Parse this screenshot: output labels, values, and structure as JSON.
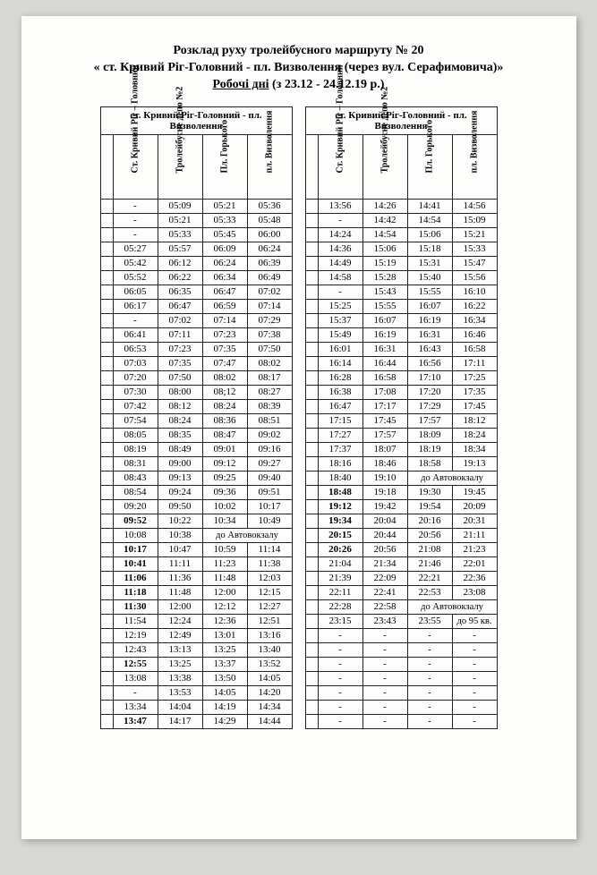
{
  "title_line1": "Розклад руху тролейбусного маршруту № 20",
  "title_line2": "« ст. Кривий Ріг-Головний - пл. Визволення (через вул. Серафимовича)»",
  "title_line3_a": "Робочі дні",
  "title_line3_b": "  (з 23.12 - 24.12.19 р.)",
  "route_header": "ст. Кривий Ріг-Головний - пл. Визволення",
  "col1": "Ст. Кривий Ріг – Головний",
  "col2": "Тролейбусне депо №2",
  "col3": "Пл. Горького",
  "col4": "пл. Визволення",
  "avtovokzal": "до Автовокзалу",
  "kv95": "до 95 кв.",
  "left_rows": [
    {
      "c": [
        "-",
        "05:09",
        "05:21",
        "05:36"
      ]
    },
    {
      "c": [
        "-",
        "05:21",
        "05:33",
        "05:48"
      ]
    },
    {
      "c": [
        "-",
        "05:33",
        "05:45",
        "06:00"
      ]
    },
    {
      "c": [
        "05:27",
        "05:57",
        "06:09",
        "06:24"
      ]
    },
    {
      "c": [
        "05:42",
        "06:12",
        "06:24",
        "06:39"
      ]
    },
    {
      "c": [
        "05:52",
        "06:22",
        "06:34",
        "06:49"
      ]
    },
    {
      "c": [
        "06:05",
        "06:35",
        "06:47",
        "07:02"
      ]
    },
    {
      "c": [
        "06:17",
        "06:47",
        "06:59",
        "07:14"
      ]
    },
    {
      "c": [
        "-",
        "07:02",
        "07:14",
        "07:29"
      ]
    },
    {
      "c": [
        "06:41",
        "07:11",
        "07:23",
        "07:38"
      ]
    },
    {
      "c": [
        "06:53",
        "07:23",
        "07:35",
        "07:50"
      ]
    },
    {
      "c": [
        "07:03",
        "07:35",
        "07:47",
        "08:02"
      ]
    },
    {
      "c": [
        "07:20",
        "07:50",
        "08:02",
        "08:17"
      ]
    },
    {
      "c": [
        "07:30",
        "08:00",
        "08;12",
        "08:27"
      ]
    },
    {
      "c": [
        "07:42",
        "08:12",
        "08:24",
        "08:39"
      ]
    },
    {
      "c": [
        "07:54",
        "08:24",
        "08:36",
        "08:51"
      ]
    },
    {
      "c": [
        "08:05",
        "08:35",
        "08:47",
        "09:02"
      ]
    },
    {
      "c": [
        "08:19",
        "08:49",
        "09:01",
        "09:16"
      ]
    },
    {
      "c": [
        "08:31",
        "09:00",
        "09:12",
        "09:27"
      ]
    },
    {
      "c": [
        "08:43",
        "09:13",
        "09:25",
        "09:40"
      ]
    },
    {
      "c": [
        "08:54",
        "09:24",
        "09:36",
        "09:51"
      ]
    },
    {
      "c": [
        "09:20",
        "09:50",
        "10:02",
        "10:17"
      ]
    },
    {
      "c": [
        "09:52",
        "10:22",
        "10:34",
        "10:49"
      ],
      "b": [
        0
      ]
    },
    {
      "c": [
        "10:08",
        "10:38"
      ],
      "span": "до Автовокзалу"
    },
    {
      "c": [
        "10:17",
        "10:47",
        "10:59",
        "11:14"
      ],
      "b": [
        0
      ]
    },
    {
      "c": [
        "10:41",
        "11:11",
        "11:23",
        "11:38"
      ],
      "b": [
        0
      ]
    },
    {
      "c": [
        "11:06",
        "11:36",
        "11:48",
        "12:03"
      ],
      "b": [
        0
      ]
    },
    {
      "c": [
        "11:18",
        "11:48",
        "12:00",
        "12:15"
      ],
      "b": [
        0
      ]
    },
    {
      "c": [
        "11:30",
        "12:00",
        "12:12",
        "12:27"
      ],
      "b": [
        0
      ]
    },
    {
      "c": [
        "11:54",
        "12:24",
        "12:36",
        "12:51"
      ]
    },
    {
      "c": [
        "12:19",
        "12:49",
        "13:01",
        "13:16"
      ]
    },
    {
      "c": [
        "12:43",
        "13:13",
        "13:25",
        "13:40"
      ]
    },
    {
      "c": [
        "12:55",
        "13:25",
        "13:37",
        "13:52"
      ],
      "b": [
        0
      ]
    },
    {
      "c": [
        "13:08",
        "13:38",
        "13:50",
        "14:05"
      ]
    },
    {
      "c": [
        "-",
        "13:53",
        "14:05",
        "14:20"
      ]
    },
    {
      "c": [
        "13:34",
        "14:04",
        "14:19",
        "14:34"
      ]
    },
    {
      "c": [
        "13:47",
        "14:17",
        "14:29",
        "14:44"
      ],
      "b": [
        0
      ]
    }
  ],
  "right_rows": [
    {
      "c": [
        "13:56",
        "14:26",
        "14:41",
        "14:56"
      ]
    },
    {
      "c": [
        "-",
        "14:42",
        "14:54",
        "15:09"
      ]
    },
    {
      "c": [
        "14:24",
        "14:54",
        "15:06",
        "15:21"
      ]
    },
    {
      "c": [
        "14:36",
        "15:06",
        "15:18",
        "15:33"
      ]
    },
    {
      "c": [
        "14:49",
        "15:19",
        "15:31",
        "15:47"
      ]
    },
    {
      "c": [
        "14:58",
        "15:28",
        "15:40",
        "15:56"
      ]
    },
    {
      "c": [
        "-",
        "15:43",
        "15:55",
        "16:10"
      ]
    },
    {
      "c": [
        "15:25",
        "15:55",
        "16:07",
        "16:22"
      ]
    },
    {
      "c": [
        "15:37",
        "16:07",
        "16:19",
        "16:34"
      ]
    },
    {
      "c": [
        "15:49",
        "16:19",
        "16:31",
        "16:46"
      ]
    },
    {
      "c": [
        "16:01",
        "16:31",
        "16:43",
        "16:58"
      ]
    },
    {
      "c": [
        "16:14",
        "16:44",
        "16:56",
        "17:11"
      ]
    },
    {
      "c": [
        "16:28",
        "16:58",
        "17:10",
        "17:25"
      ]
    },
    {
      "c": [
        "16:38",
        "17:08",
        "17:20",
        "17:35"
      ]
    },
    {
      "c": [
        "16:47",
        "17:17",
        "17:29",
        "17:45"
      ]
    },
    {
      "c": [
        "17:15",
        "17:45",
        "17:57",
        "18:12"
      ]
    },
    {
      "c": [
        "17:27",
        "17:57",
        "18:09",
        "18:24"
      ]
    },
    {
      "c": [
        "17:37",
        "18:07",
        "18:19",
        "18:34"
      ]
    },
    {
      "c": [
        "18:16",
        "18:46",
        "18:58",
        "19:13"
      ]
    },
    {
      "c": [
        "18:40",
        "19:10"
      ],
      "span": "до Автовокзалу"
    },
    {
      "c": [
        "18:48",
        "19:18",
        "19:30",
        "19:45"
      ],
      "b": [
        0
      ]
    },
    {
      "c": [
        "19:12",
        "19:42",
        "19:54",
        "20:09"
      ],
      "b": [
        0
      ]
    },
    {
      "c": [
        "19:34",
        "20:04",
        "20:16",
        "20:31"
      ],
      "b": [
        0
      ]
    },
    {
      "c": [
        "20:15",
        "20:44",
        "20:56",
        "21:11"
      ],
      "b": [
        0
      ]
    },
    {
      "c": [
        "20:26",
        "20:56",
        "21:08",
        "21:23"
      ],
      "b": [
        0
      ]
    },
    {
      "c": [
        "21:04",
        "21:34",
        "21:46",
        "22:01"
      ]
    },
    {
      "c": [
        "21:39",
        "22:09",
        "22:21",
        "22:36"
      ]
    },
    {
      "c": [
        "22:11",
        "22:41",
        "22:53",
        "23:08"
      ]
    },
    {
      "c": [
        "22:28",
        "22:58"
      ],
      "span": "до Автовокзалу"
    },
    {
      "c": [
        "23:15",
        "23:43",
        "23:55"
      ],
      "last": "до 95 кв."
    },
    {
      "c": [
        "-",
        "-",
        "-",
        "-"
      ]
    },
    {
      "c": [
        "-",
        "-",
        "-",
        "-"
      ]
    },
    {
      "c": [
        "-",
        "-",
        "-",
        "-"
      ]
    },
    {
      "c": [
        "-",
        "-",
        "-",
        "-"
      ]
    },
    {
      "c": [
        "-",
        "-",
        "-",
        "-"
      ]
    },
    {
      "c": [
        "-",
        "-",
        "-",
        "-"
      ]
    },
    {
      "c": [
        "-",
        "-",
        "-",
        "-"
      ]
    }
  ]
}
